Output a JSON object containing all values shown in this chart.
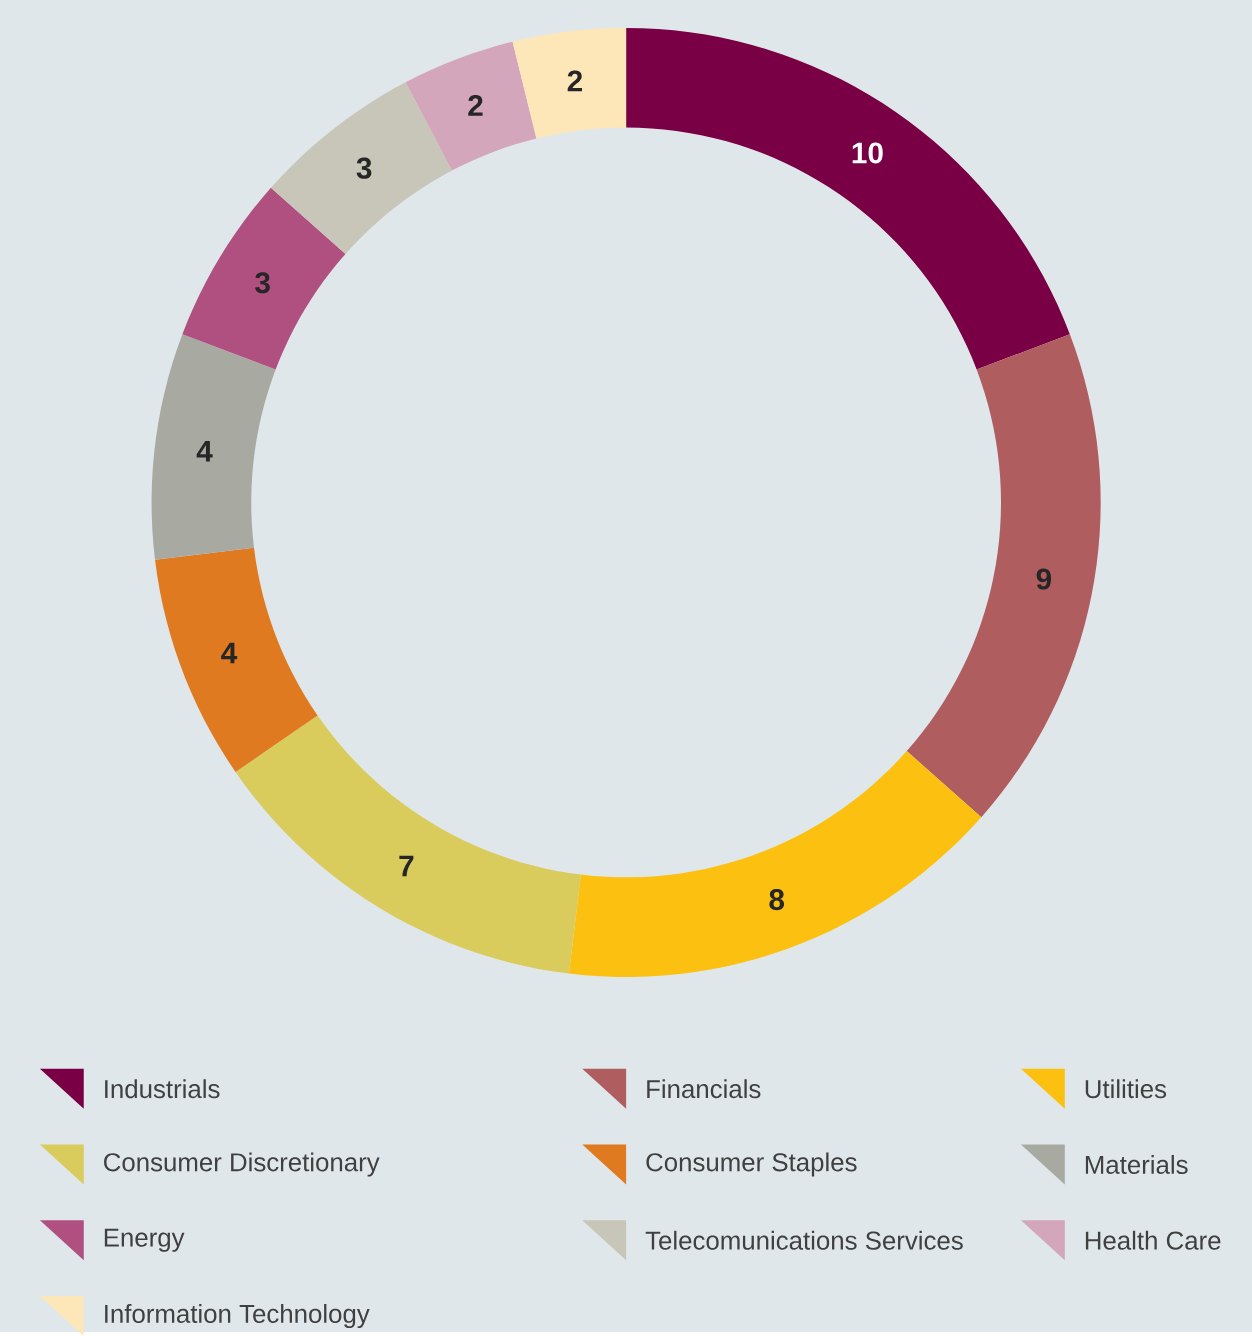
{
  "chart_data": {
    "type": "donut",
    "categories": [
      "Industrials",
      "Financials",
      "Utilities",
      "Consumer Discretionary",
      "Consumer Staples",
      "Materials",
      "Energy",
      "Telecomunications Services",
      "Health Care",
      "Information Technology"
    ],
    "values": [
      10,
      9,
      8,
      7,
      4,
      4,
      3,
      3,
      2,
      2
    ],
    "colors": [
      "#7a0045",
      "#b05d60",
      "#fcc010",
      "#d9cc5c",
      "#e07a20",
      "#a8aaa2",
      "#b05080",
      "#c8c6b8",
      "#d4a6bc",
      "#fde6b8"
    ],
    "data_labels": true,
    "legend": "bottom"
  }
}
